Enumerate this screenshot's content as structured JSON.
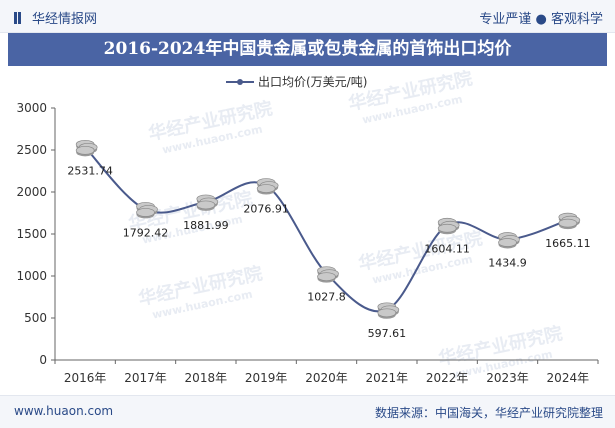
{
  "header": {
    "brand": "华经情报网",
    "slogan": "专业严谨 ● 客观科学"
  },
  "footer": {
    "site": "www.huaon.com",
    "source": "数据来源：中国海关，华经产业研究院整理"
  },
  "colors": {
    "title_bg": "#4a64a4",
    "line": "#4a5a8c",
    "coin": "#c9c9c9"
  },
  "icons": [
    "brand-logo-icon",
    "coin-stack-icon"
  ],
  "chart_data": {
    "type": "line",
    "title": "2016-2024年中国贵金属或包贵金属的首饰出口均价",
    "xlabel": "",
    "ylabel": "",
    "categories": [
      "2016年",
      "2017年",
      "2018年",
      "2019年",
      "2020年",
      "2021年",
      "2022年",
      "2023年",
      "2024年"
    ],
    "series": [
      {
        "name": "出口均价(万美元/吨)",
        "values": [
          2531.74,
          1792.42,
          1881.99,
          2076.91,
          1027.8,
          597.61,
          1604.11,
          1434.9,
          1665.11
        ],
        "labels": [
          "2531.74",
          "1792.42",
          "1881.99",
          "2076.91",
          "1027.8",
          "597.61",
          "1604.11",
          "1434.9",
          "1665.11"
        ]
      }
    ],
    "ylim": [
      0,
      3000
    ],
    "yticks": [
      0,
      500,
      1000,
      1500,
      2000,
      2500,
      3000
    ],
    "grid": false,
    "legend_position": "top-center",
    "watermark": "华经产业研究院",
    "watermark_url": "www.huaon.com"
  }
}
